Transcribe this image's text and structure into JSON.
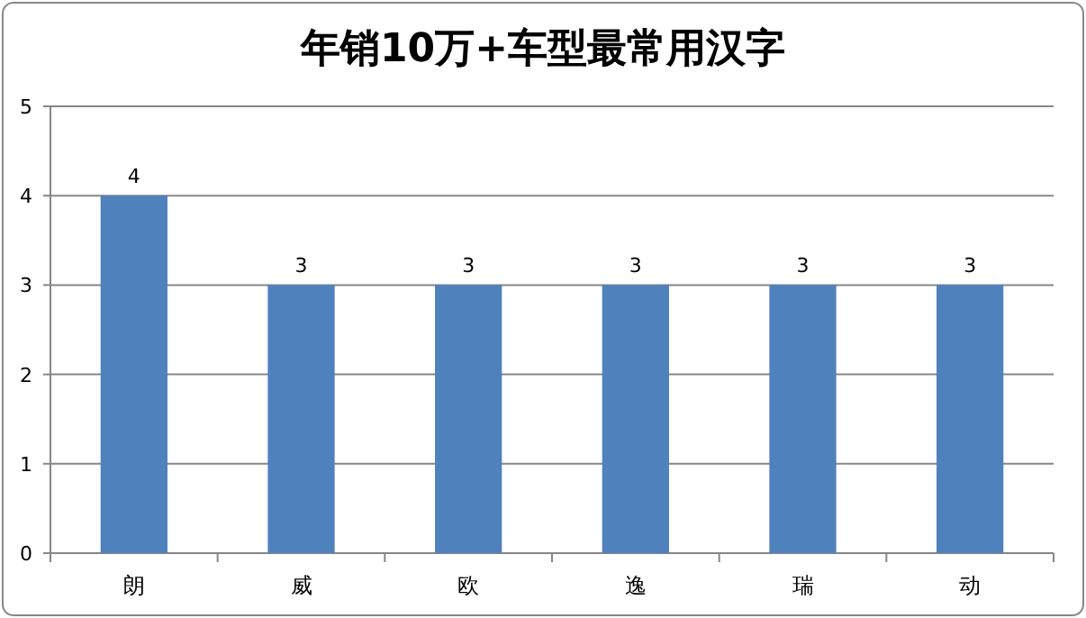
{
  "chart_data": {
    "type": "bar",
    "title": "年销10万+车型最常用汉字",
    "categories": [
      "朗",
      "威",
      "欧",
      "逸",
      "瑞",
      "动"
    ],
    "values": [
      4,
      3,
      3,
      3,
      3,
      3
    ],
    "color": "#4f81bd",
    "ylim": [
      0,
      5
    ],
    "yticks": [
      0,
      1,
      2,
      3,
      4,
      5
    ],
    "grid": "y",
    "data_labels": true
  }
}
